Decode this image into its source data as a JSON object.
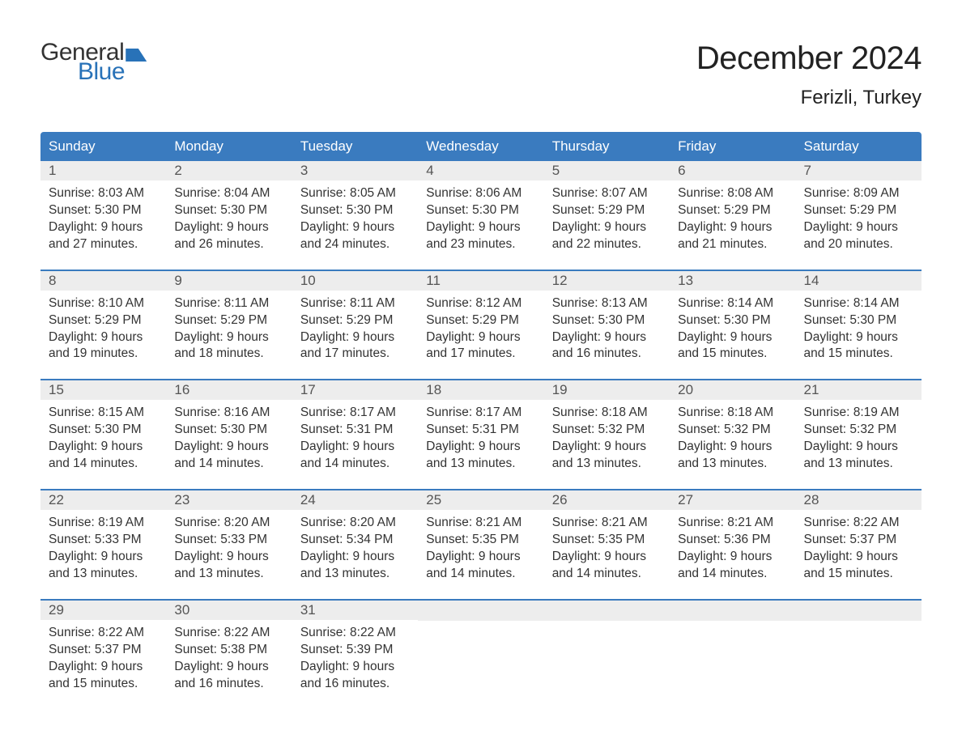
{
  "brand": {
    "word1": "General",
    "word2": "Blue",
    "color": "#2872b8"
  },
  "title": "December 2024",
  "location": "Ferizli, Turkey",
  "colors": {
    "header_bg": "#3a7bbf",
    "header_text": "#ffffff",
    "week_border": "#3a7bbf",
    "daynum_bg": "#ededed",
    "daynum_text": "#555555",
    "body_text": "#333333",
    "page_bg": "#ffffff"
  },
  "typography": {
    "title_size": 40,
    "location_size": 24,
    "header_size": 17,
    "body_size": 15.5
  },
  "day_labels": [
    "Sunday",
    "Monday",
    "Tuesday",
    "Wednesday",
    "Thursday",
    "Friday",
    "Saturday"
  ],
  "labels": {
    "sunrise": "Sunrise:",
    "sunset": "Sunset:",
    "daylight": "Daylight:"
  },
  "weeks": [
    [
      {
        "n": "1",
        "sunrise": "8:03 AM",
        "sunset": "5:30 PM",
        "dl1": "9 hours",
        "dl2": "and 27 minutes."
      },
      {
        "n": "2",
        "sunrise": "8:04 AM",
        "sunset": "5:30 PM",
        "dl1": "9 hours",
        "dl2": "and 26 minutes."
      },
      {
        "n": "3",
        "sunrise": "8:05 AM",
        "sunset": "5:30 PM",
        "dl1": "9 hours",
        "dl2": "and 24 minutes."
      },
      {
        "n": "4",
        "sunrise": "8:06 AM",
        "sunset": "5:30 PM",
        "dl1": "9 hours",
        "dl2": "and 23 minutes."
      },
      {
        "n": "5",
        "sunrise": "8:07 AM",
        "sunset": "5:29 PM",
        "dl1": "9 hours",
        "dl2": "and 22 minutes."
      },
      {
        "n": "6",
        "sunrise": "8:08 AM",
        "sunset": "5:29 PM",
        "dl1": "9 hours",
        "dl2": "and 21 minutes."
      },
      {
        "n": "7",
        "sunrise": "8:09 AM",
        "sunset": "5:29 PM",
        "dl1": "9 hours",
        "dl2": "and 20 minutes."
      }
    ],
    [
      {
        "n": "8",
        "sunrise": "8:10 AM",
        "sunset": "5:29 PM",
        "dl1": "9 hours",
        "dl2": "and 19 minutes."
      },
      {
        "n": "9",
        "sunrise": "8:11 AM",
        "sunset": "5:29 PM",
        "dl1": "9 hours",
        "dl2": "and 18 minutes."
      },
      {
        "n": "10",
        "sunrise": "8:11 AM",
        "sunset": "5:29 PM",
        "dl1": "9 hours",
        "dl2": "and 17 minutes."
      },
      {
        "n": "11",
        "sunrise": "8:12 AM",
        "sunset": "5:29 PM",
        "dl1": "9 hours",
        "dl2": "and 17 minutes."
      },
      {
        "n": "12",
        "sunrise": "8:13 AM",
        "sunset": "5:30 PM",
        "dl1": "9 hours",
        "dl2": "and 16 minutes."
      },
      {
        "n": "13",
        "sunrise": "8:14 AM",
        "sunset": "5:30 PM",
        "dl1": "9 hours",
        "dl2": "and 15 minutes."
      },
      {
        "n": "14",
        "sunrise": "8:14 AM",
        "sunset": "5:30 PM",
        "dl1": "9 hours",
        "dl2": "and 15 minutes."
      }
    ],
    [
      {
        "n": "15",
        "sunrise": "8:15 AM",
        "sunset": "5:30 PM",
        "dl1": "9 hours",
        "dl2": "and 14 minutes."
      },
      {
        "n": "16",
        "sunrise": "8:16 AM",
        "sunset": "5:30 PM",
        "dl1": "9 hours",
        "dl2": "and 14 minutes."
      },
      {
        "n": "17",
        "sunrise": "8:17 AM",
        "sunset": "5:31 PM",
        "dl1": "9 hours",
        "dl2": "and 14 minutes."
      },
      {
        "n": "18",
        "sunrise": "8:17 AM",
        "sunset": "5:31 PM",
        "dl1": "9 hours",
        "dl2": "and 13 minutes."
      },
      {
        "n": "19",
        "sunrise": "8:18 AM",
        "sunset": "5:32 PM",
        "dl1": "9 hours",
        "dl2": "and 13 minutes."
      },
      {
        "n": "20",
        "sunrise": "8:18 AM",
        "sunset": "5:32 PM",
        "dl1": "9 hours",
        "dl2": "and 13 minutes."
      },
      {
        "n": "21",
        "sunrise": "8:19 AM",
        "sunset": "5:32 PM",
        "dl1": "9 hours",
        "dl2": "and 13 minutes."
      }
    ],
    [
      {
        "n": "22",
        "sunrise": "8:19 AM",
        "sunset": "5:33 PM",
        "dl1": "9 hours",
        "dl2": "and 13 minutes."
      },
      {
        "n": "23",
        "sunrise": "8:20 AM",
        "sunset": "5:33 PM",
        "dl1": "9 hours",
        "dl2": "and 13 minutes."
      },
      {
        "n": "24",
        "sunrise": "8:20 AM",
        "sunset": "5:34 PM",
        "dl1": "9 hours",
        "dl2": "and 13 minutes."
      },
      {
        "n": "25",
        "sunrise": "8:21 AM",
        "sunset": "5:35 PM",
        "dl1": "9 hours",
        "dl2": "and 14 minutes."
      },
      {
        "n": "26",
        "sunrise": "8:21 AM",
        "sunset": "5:35 PM",
        "dl1": "9 hours",
        "dl2": "and 14 minutes."
      },
      {
        "n": "27",
        "sunrise": "8:21 AM",
        "sunset": "5:36 PM",
        "dl1": "9 hours",
        "dl2": "and 14 minutes."
      },
      {
        "n": "28",
        "sunrise": "8:22 AM",
        "sunset": "5:37 PM",
        "dl1": "9 hours",
        "dl2": "and 15 minutes."
      }
    ],
    [
      {
        "n": "29",
        "sunrise": "8:22 AM",
        "sunset": "5:37 PM",
        "dl1": "9 hours",
        "dl2": "and 15 minutes."
      },
      {
        "n": "30",
        "sunrise": "8:22 AM",
        "sunset": "5:38 PM",
        "dl1": "9 hours",
        "dl2": "and 16 minutes."
      },
      {
        "n": "31",
        "sunrise": "8:22 AM",
        "sunset": "5:39 PM",
        "dl1": "9 hours",
        "dl2": "and 16 minutes."
      },
      {
        "empty": true
      },
      {
        "empty": true
      },
      {
        "empty": true
      },
      {
        "empty": true
      }
    ]
  ]
}
